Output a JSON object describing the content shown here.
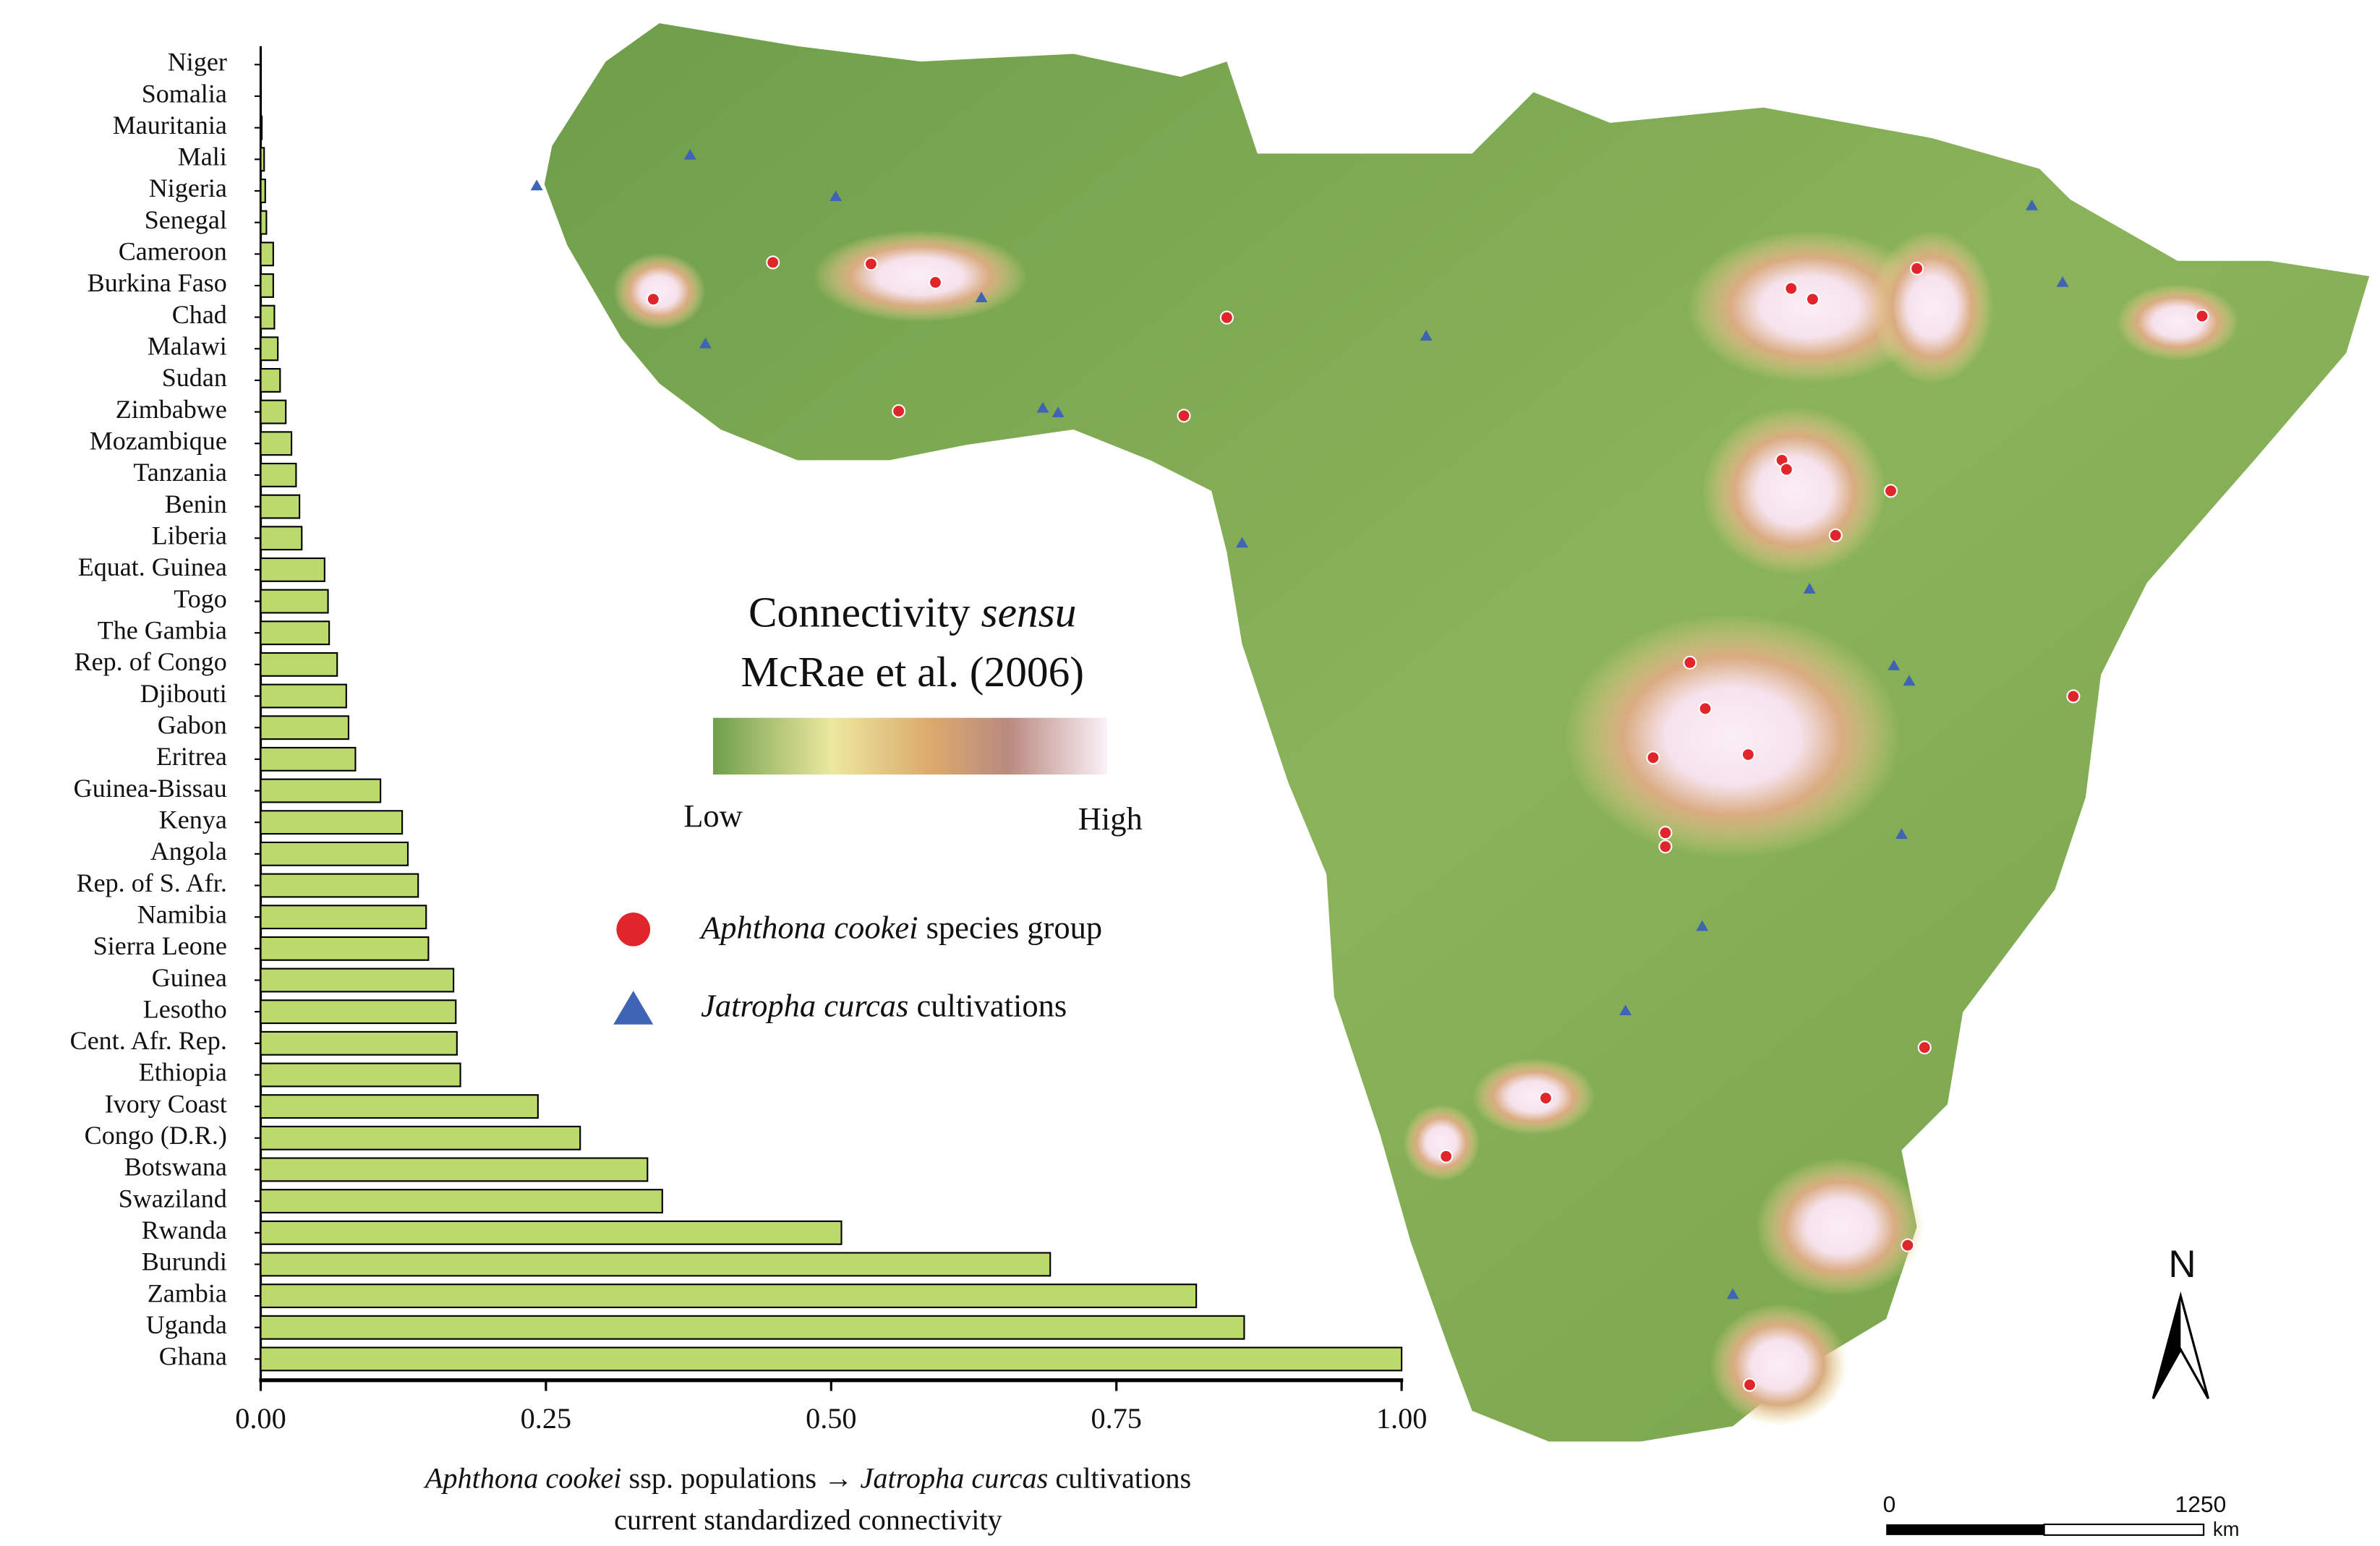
{
  "chart_data": {
    "type": "bar",
    "orientation": "horizontal",
    "categories": [
      "Niger",
      "Somalia",
      "Mauritania",
      "Mali",
      "Nigeria",
      "Senegal",
      "Cameroon",
      "Burkina Faso",
      "Chad",
      "Malawi",
      "Sudan",
      "Zimbabwe",
      "Mozambique",
      "Tanzania",
      "Benin",
      "Liberia",
      "Equat. Guinea",
      "Togo",
      "The Gambia",
      "Rep. of Congo",
      "Djibouti",
      "Gabon",
      "Eritrea",
      "Guinea-Bissau",
      "Kenya",
      "Angola",
      "Rep. of S. Afr.",
      "Namibia",
      "Sierra Leone",
      "Guinea",
      "Lesotho",
      "Cent. Afr. Rep.",
      "Ethiopia",
      "Ivory Coast",
      "Congo (D.R.)",
      "Botswana",
      "Swaziland",
      "Rwanda",
      "Burundi",
      "Zambia",
      "Uganda",
      "Ghana"
    ],
    "values": [
      0.0,
      0.0,
      0.001,
      0.003,
      0.004,
      0.005,
      0.011,
      0.011,
      0.012,
      0.015,
      0.017,
      0.022,
      0.027,
      0.031,
      0.034,
      0.036,
      0.056,
      0.059,
      0.06,
      0.067,
      0.075,
      0.077,
      0.083,
      0.105,
      0.124,
      0.129,
      0.138,
      0.145,
      0.147,
      0.169,
      0.171,
      0.172,
      0.175,
      0.243,
      0.28,
      0.339,
      0.352,
      0.509,
      0.692,
      0.82,
      0.862,
      1.0
    ],
    "color": "#bcd96c",
    "xlim": [
      0,
      1
    ],
    "xticks": [
      {
        "value": 0,
        "label": "0.00"
      },
      {
        "value": 0.25,
        "label": "0.25"
      },
      {
        "value": 0.5,
        "label": "0.50"
      },
      {
        "value": 0.75,
        "label": "0.75"
      },
      {
        "value": 1,
        "label": "1.00"
      }
    ],
    "x_label": {
      "line1": [
        "Aphthona cookei",
        " ssp. populations → ",
        "Jatropha curcas",
        " cultivations"
      ],
      "line2": "current standardized connectivity"
    }
  },
  "map": {
    "legend_title": [
      "Connectivity ",
      "sensu",
      "McRae et al. (2006)"
    ],
    "low": "Low",
    "high": "High",
    "species": [
      "Aphthona cookei",
      " species group"
    ],
    "cultivation": [
      "Jatropha curcas",
      " cultivations"
    ],
    "scale": {
      "start": "0",
      "end": "1250",
      "unit": "km"
    },
    "north": "N"
  }
}
